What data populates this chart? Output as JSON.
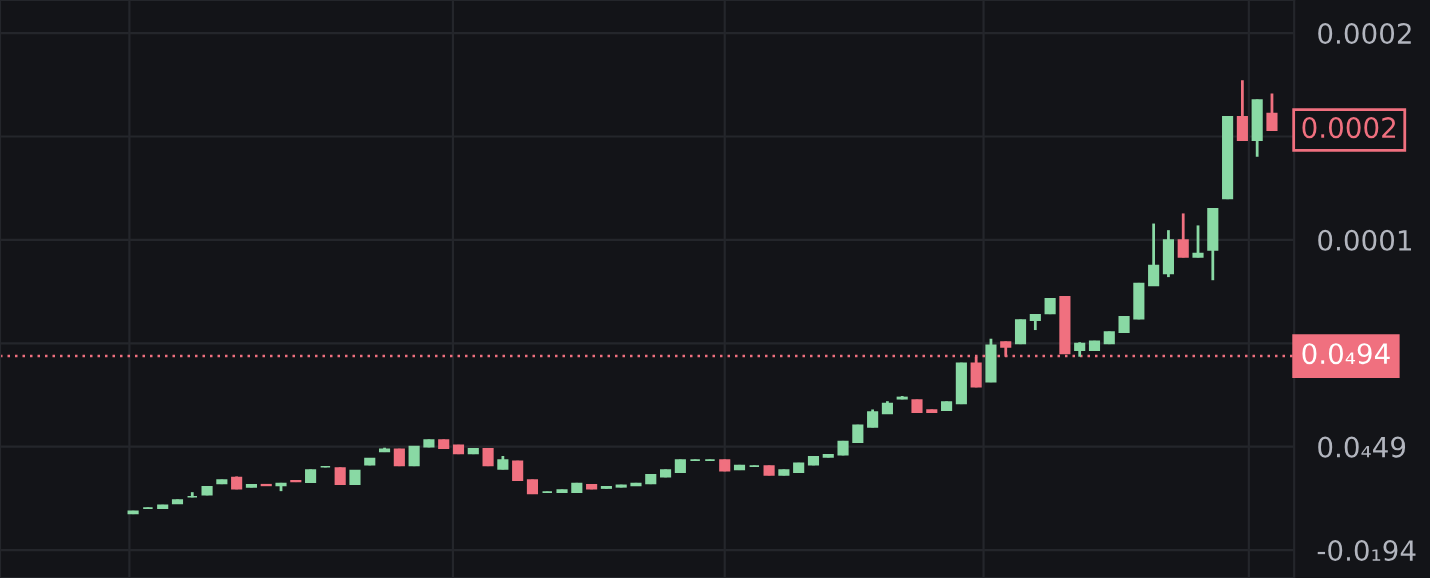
{
  "chart_data": {
    "type": "candlestick",
    "categories": [
      null,
      null,
      null,
      null,
      null,
      null,
      null,
      null,
      null,
      null,
      null,
      null,
      null,
      null,
      null,
      null,
      null,
      null,
      null,
      null,
      null,
      null,
      null,
      null,
      null,
      null,
      null,
      null,
      null,
      null,
      null,
      null,
      null,
      null,
      null,
      null,
      null,
      null,
      null,
      null,
      null,
      null,
      null,
      null,
      null,
      null,
      null,
      null,
      null,
      null,
      null,
      null,
      null,
      null,
      null,
      null,
      null,
      null,
      null,
      null,
      null,
      null,
      null,
      null,
      null,
      null,
      null,
      null,
      null,
      null,
      null,
      null,
      null,
      null,
      null,
      null,
      null,
      null
    ],
    "ohlc": [
      [
        1.77e-05,
        1.9e-05,
        1.74e-05,
        1.87e-05
      ],
      [
        2.03e-05,
        2.06e-05,
        2e-05,
        2.03e-05
      ],
      [
        2.03e-05,
        2.19e-05,
        2e-05,
        2.16e-05
      ],
      [
        2.26e-05,
        2.45e-05,
        2.23e-05,
        2.42e-05
      ],
      [
        2.58e-05,
        2.8e-05,
        2.55e-05,
        2.58e-05
      ],
      [
        2.68e-05,
        3.09e-05,
        2.65e-05,
        3.06e-05
      ],
      [
        3.22e-05,
        3.41e-05,
        3.19e-05,
        3.38e-05
      ],
      [
        3.51e-05,
        3.56e-05,
        2.94e-05,
        2.97e-05
      ],
      [
        3.06e-05,
        3.19e-05,
        3.03e-05,
        3.16e-05
      ],
      [
        3.16e-05,
        3.19e-05,
        3.1e-05,
        3.13e-05
      ],
      [
        3.13e-05,
        3.25e-05,
        2.85e-05,
        3.22e-05
      ],
      [
        3.35e-05,
        3.38e-05,
        3.29e-05,
        3.32e-05
      ],
      [
        3.29e-05,
        3.9e-05,
        3.26e-05,
        3.87e-05
      ],
      [
        4.03e-05,
        4.06e-05,
        4e-05,
        4.03e-05
      ],
      [
        3.96e-05,
        4e-05,
        3.16e-05,
        3.19e-05
      ],
      [
        3.19e-05,
        3.87e-05,
        3.16e-05,
        3.84e-05
      ],
      [
        4.13e-05,
        4.45e-05,
        4.1e-05,
        4.42e-05
      ],
      [
        4.77e-05,
        4.95e-05,
        4.74e-05,
        4.87e-05
      ],
      [
        4.87e-05,
        4.9e-05,
        4.06e-05,
        4.09e-05
      ],
      [
        4.09e-05,
        5.03e-05,
        4.06e-05,
        5e-05
      ],
      [
        5e-05,
        5.35e-05,
        4.97e-05,
        5.32e-05
      ],
      [
        5.32e-05,
        5.35e-05,
        4.9e-05,
        4.93e-05
      ],
      [
        5.06e-05,
        5.09e-05,
        4.64e-05,
        4.67e-05
      ],
      [
        4.67e-05,
        4.93e-05,
        4.64e-05,
        4.9e-05
      ],
      [
        4.9e-05,
        4.93e-05,
        4.06e-05,
        4.09e-05
      ],
      [
        3.93e-05,
        4.55e-05,
        3.9e-05,
        4.35e-05
      ],
      [
        4.29e-05,
        4.32e-05,
        3.35e-05,
        3.38e-05
      ],
      [
        3.38e-05,
        3.41e-05,
        2.71e-05,
        2.74e-05
      ],
      [
        2.8e-05,
        2.83e-05,
        2.77e-05,
        2.8e-05
      ],
      [
        2.8e-05,
        2.93e-05,
        2.77e-05,
        2.9e-05
      ],
      [
        2.8e-05,
        3.25e-05,
        2.77e-05,
        3.22e-05
      ],
      [
        3.16e-05,
        3.19e-05,
        2.94e-05,
        2.97e-05
      ],
      [
        3e-05,
        3.09e-05,
        2.97e-05,
        3.06e-05
      ],
      [
        3.06e-05,
        3.16e-05,
        3.03e-05,
        3.13e-05
      ],
      [
        3.13e-05,
        3.25e-05,
        3.1e-05,
        3.22e-05
      ],
      [
        3.22e-05,
        3.67e-05,
        3.19e-05,
        3.64e-05
      ],
      [
        3.55e-05,
        3.9e-05,
        3.52e-05,
        3.87e-05
      ],
      [
        3.77e-05,
        4.38e-05,
        3.74e-05,
        4.35e-05
      ],
      [
        4.35e-05,
        4.38e-05,
        4.32e-05,
        4.35e-05
      ],
      [
        4.35e-05,
        4.38e-05,
        4.32e-05,
        4.35e-05
      ],
      [
        4.35e-05,
        4.38e-05,
        3.81e-05,
        3.84e-05
      ],
      [
        3.9e-05,
        4.12e-05,
        3.87e-05,
        4.09e-05
      ],
      [
        4.06e-05,
        4.09e-05,
        4.03e-05,
        4.06e-05
      ],
      [
        4.06e-05,
        4.09e-05,
        3.61e-05,
        3.64e-05
      ],
      [
        3.64e-05,
        3.9e-05,
        3.61e-05,
        3.87e-05
      ],
      [
        3.77e-05,
        4.22e-05,
        3.74e-05,
        4.19e-05
      ],
      [
        4.13e-05,
        4.54e-05,
        4.1e-05,
        4.51e-05
      ],
      [
        4.51e-05,
        4.64e-05,
        4.48e-05,
        4.61e-05
      ],
      [
        4.61e-05,
        5.28e-05,
        4.58e-05,
        5.25e-05
      ],
      [
        5.22e-05,
        6.06e-05,
        5.19e-05,
        6.03e-05
      ],
      [
        5.96e-05,
        6.8e-05,
        5.93e-05,
        6.67e-05
      ],
      [
        6.61e-05,
        7.2e-05,
        6.58e-05,
        7.09e-05
      ],
      [
        7.32e-05,
        7.45e-05,
        7.29e-05,
        7.38e-05
      ],
      [
        7.25e-05,
        7.28e-05,
        6.64e-05,
        6.67e-05
      ],
      [
        6.77e-05,
        6.8e-05,
        6.64e-05,
        6.67e-05
      ],
      [
        6.77e-05,
        7.19e-05,
        6.74e-05,
        7.16e-05
      ],
      [
        7.09e-05,
        9.06e-05,
        7.06e-05,
        9.03e-05
      ],
      [
        9.03e-05,
        9.35e-05,
        7.87e-05,
        7.9e-05
      ],
      [
        8.15e-05,
        0.0001022,
        8.12e-05,
        9.9e-05
      ],
      [
        0.0001006,
        0.0001009,
        9.35e-05,
        9.83e-05
      ],
      [
        9.99e-05,
        0.0001115,
        9.96e-05,
        0.0001112
      ],
      [
        0.0001112,
        0.0001141,
        0.0001064,
        0.0001138
      ],
      [
        0.0001144,
        0.0001218,
        0.0001141,
        0.0001215
      ],
      [
        0.0001225,
        0.0001228,
        9.48e-05,
        9.51e-05
      ],
      [
        9.67e-05,
        0.0001005,
        9.35e-05,
        9.99e-05
      ],
      [
        9.67e-05,
        0.0001012,
        9.64e-05,
        0.0001009
      ],
      [
        9.99e-05,
        0.0001057,
        9.96e-05,
        0.0001054
      ],
      [
        0.0001054,
        0.0001131,
        0.0001051,
        0.0001128
      ],
      [
        0.0001119,
        0.0001292,
        0.0001116,
        0.0001289
      ],
      [
        0.000128,
        0.0001579,
        0.0001277,
        0.0001376
      ],
      [
        0.0001338,
        0.0001547,
        0.000132,
        0.0001499
      ],
      [
        0.0001499,
        0.0001628,
        0.0001415,
        0.0001418
      ],
      [
        0.0001418,
        0.000157,
        0.0001415,
        0.0001434
      ],
      [
        0.0001451,
        0.0001653,
        0.0001305,
        0.000165
      ],
      [
        0.00017,
        0.0002098,
        0.0001697,
        0.0002095
      ],
      [
        0.0002095,
        0.0002272,
        0.0001979,
        0.0001982
      ],
      [
        0.0001982,
        0.0002179,
        0.0001902,
        0.0002176
      ],
      [
        0.0002111,
        0.0002208,
        0.0002028,
        0.0002031
      ]
    ],
    "colors": [
      "#89d9a4",
      "#89d9a4",
      "#89d9a4",
      "#89d9a4",
      "#89d9a4",
      "#89d9a4",
      "#89d9a4",
      "#f0707f",
      "#89d9a4",
      "#f0707f",
      "#89d9a4",
      "#f0707f",
      "#89d9a4",
      "#89d9a4",
      "#f0707f",
      "#89d9a4",
      "#89d9a4",
      "#89d9a4",
      "#f0707f",
      "#89d9a4",
      "#89d9a4",
      "#f0707f",
      "#f0707f",
      "#89d9a4",
      "#f0707f",
      "#89d9a4",
      "#f0707f",
      "#f0707f",
      "#89d9a4",
      "#89d9a4",
      "#89d9a4",
      "#f0707f",
      "#89d9a4",
      "#89d9a4",
      "#89d9a4",
      "#89d9a4",
      "#89d9a4",
      "#89d9a4",
      "#89d9a4",
      "#89d9a4",
      "#f0707f",
      "#89d9a4",
      "#89d9a4",
      "#f0707f",
      "#89d9a4",
      "#89d9a4",
      "#89d9a4",
      "#89d9a4",
      "#89d9a4",
      "#89d9a4",
      "#89d9a4",
      "#89d9a4",
      "#89d9a4",
      "#f0707f",
      "#f0707f",
      "#89d9a4",
      "#89d9a4",
      "#f0707f",
      "#89d9a4",
      "#f0707f",
      "#89d9a4",
      "#89d9a4",
      "#89d9a4",
      "#f0707f",
      "#89d9a4",
      "#89d9a4",
      "#89d9a4",
      "#89d9a4",
      "#89d9a4",
      "#89d9a4",
      "#89d9a4",
      "#f0707f",
      "#89d9a4",
      "#89d9a4",
      "#89d9a4",
      "#f0707f",
      "#89d9a4",
      "#f0707f"
    ],
    "ylim": [
      -1.35e-05,
      0.000266
    ],
    "yticks": [
      {
        "value": 0.00025,
        "label": "0.0002"
      },
      {
        "value": 0.0002,
        "label": null
      },
      {
        "value": 0.00015,
        "label": "0.0001"
      },
      {
        "value": 0.0001,
        "label": null
      },
      {
        "value": 5e-05,
        "label": "0.0₄49"
      },
      {
        "value": 0,
        "label": "-0.0₁94"
      }
    ],
    "ref_lines": [
      {
        "axis": "y",
        "value": 9.38e-05,
        "label": "0.0₄94",
        "color": "#f0707f",
        "line_style": "dotted"
      }
    ],
    "annotations": [
      "0.0002"
    ],
    "grid": true
  }
}
